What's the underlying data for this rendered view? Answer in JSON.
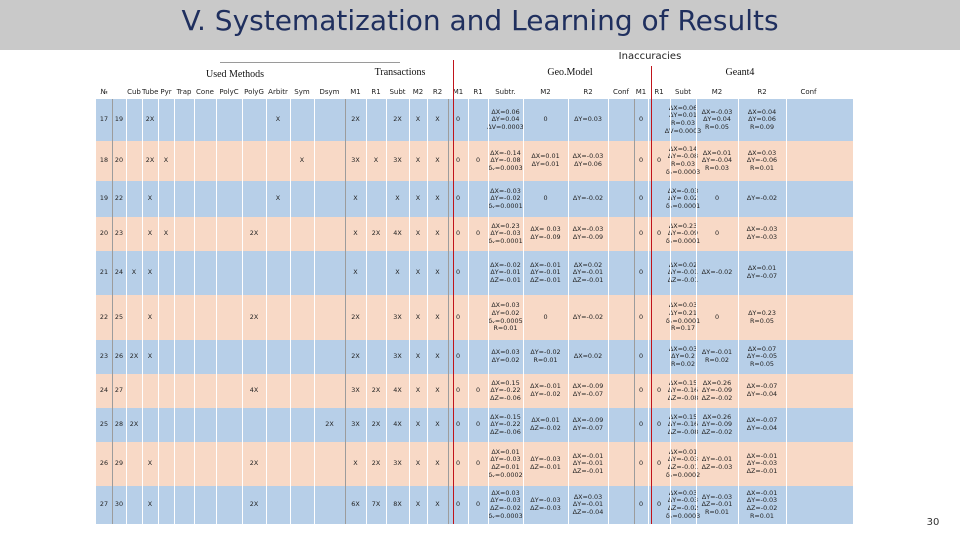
{
  "slide": {
    "title": "V. Systematization and Learning of Results",
    "page_number": "30",
    "inaccuracies_label": "Inaccuracies"
  },
  "groups": {
    "used_methods": "Used Methods",
    "transactions": "Transactions",
    "transactions_sub": "",
    "geomodel": "Geo.Model",
    "geant4": "Geant4"
  },
  "columns": [
    "№",
    "",
    "Cub",
    "Tube",
    "Pyr",
    "Trap",
    "Cone",
    "PolyC",
    "PolyG",
    "Arbitr",
    "Sym",
    "Dsym",
    "M1",
    "R1",
    "Subt",
    "M2",
    "R2",
    "M1",
    "R1",
    "Subtr.",
    "M2",
    "R2",
    "Conf",
    "M1",
    "R1",
    "Subt",
    "M2",
    "R2",
    "Conf"
  ],
  "rows": [
    {
      "c": [
        "17",
        "19",
        "",
        "2X",
        "",
        "",
        "",
        "",
        "",
        "X",
        "",
        "",
        "2X",
        "",
        "2X",
        "X",
        "X",
        "0",
        "",
        "ΔX=0.06\nΔY=0.04\nΔV=0.0003",
        "0",
        "ΔY=0.03",
        "",
        "0",
        "",
        "ΔX=0.06\nΔY=0.01\nR=0.03\nΔV=0.0003",
        "ΔX=-0.03\nΔY=0.04\nR=0.05",
        "ΔX=0.04\nΔY=0.06\nR=0.09",
        ""
      ]
    },
    {
      "c": [
        "18",
        "20",
        "",
        "2X",
        "X",
        "",
        "",
        "",
        "",
        "",
        "X",
        "",
        "3X",
        "X",
        "3X",
        "X",
        "X",
        "0",
        "0",
        "ΔX=-0.14\nΔY=-0.08\nδᵥ=0.0003",
        "ΔX=0.01\nΔY=0.01",
        "ΔX=-0.03\nΔY=0.06",
        "",
        "0",
        "0",
        "ΔX=0.14\nΔY=-0.08\nR=0.03\nδᵥ=0.0003",
        "ΔX=0.01\nΔY=-0.04\nR=0.03",
        "ΔX=0.03\nΔY=-0.06\nR=0.01",
        ""
      ]
    },
    {
      "c": [
        "19",
        "22",
        "",
        "X",
        "",
        "",
        "",
        "",
        "",
        "X",
        "",
        "",
        "X",
        "",
        "X",
        "X",
        "X",
        "0",
        "",
        "ΔX=-0.03\nΔY=-0.02\nδᵥ=0.0001",
        "0",
        "ΔY=-0.02",
        "",
        "0",
        "",
        "ΔX=-0.03\nΔY= 0.02\nδᵥ=0.0001",
        "0",
        "ΔY=-0.02",
        ""
      ]
    },
    {
      "c": [
        "20",
        "23",
        "",
        "X",
        "X",
        "",
        "",
        "",
        "2X",
        "",
        "",
        "",
        "X",
        "2X",
        "4X",
        "X",
        "X",
        "0",
        "0",
        "ΔX=0.23\nΔY=-0.03\nδᵥ=0.0001",
        "ΔX= 0.03\nΔY=-0.09",
        "ΔX=-0.03\nΔY=-0.09",
        "",
        "0",
        "0",
        "ΔX=0.23\nΔY=-0.09\nδᵥ=0.0001",
        "0",
        "ΔX=-0.03\nΔY=-0.03",
        ""
      ]
    },
    {
      "c": [
        "21",
        "24",
        "X",
        "X",
        "",
        "",
        "",
        "",
        "",
        "",
        "",
        "",
        "X",
        "",
        "X",
        "X",
        "X",
        "0",
        "",
        "ΔX=-0.02\nΔY=-0.01\nΔZ=-0.01",
        "ΔX=-0.01\nΔY=-0.01\nΔZ=-0.01",
        "ΔX=0.02\nΔY=-0.01\nΔZ=-0.01",
        "",
        "0",
        "",
        "ΔX=0.02\nΔY=-0.01\nΔZ=-0.01",
        "ΔX=-0.02",
        "ΔX=0.01\nΔY=-0.07",
        ""
      ]
    },
    {
      "c": [
        "22",
        "25",
        "",
        "X",
        "",
        "",
        "",
        "",
        "2X",
        "",
        "",
        "",
        "2X",
        "",
        "3X",
        "X",
        "X",
        "0",
        "",
        "ΔX=0.03\nΔY=0.02\nδᵥ=0.0005\nR=0.01",
        "0",
        "ΔY=-0.02",
        "",
        "0",
        "",
        "ΔX=0.03\nΔY=0.21\nδᵥ=0.0001\nR=0.17",
        "0",
        "ΔY=0.23\nR=0.05",
        ""
      ]
    },
    {
      "c": [
        "23",
        "26",
        "2X",
        "X",
        "",
        "",
        "",
        "",
        "",
        "",
        "",
        "",
        "2X",
        "",
        "3X",
        "X",
        "X",
        "0",
        "",
        "ΔX=0.03\nΔY=0.02",
        "ΔY=-0.02\nR=0.01",
        "ΔX=0.02",
        "",
        "0",
        "",
        "ΔX=0.03\nΔY=0.2\nR=0.02",
        "ΔY=-0.01\nR=0.02",
        "ΔX=0.07\nΔY=-0.05\nR=0.05",
        ""
      ]
    },
    {
      "c": [
        "24",
        "27",
        "",
        "",
        "",
        "",
        "",
        "",
        "4X",
        "",
        "",
        "",
        "3X",
        "2X",
        "4X",
        "X",
        "X",
        "0",
        "0",
        "ΔX=0.15\nΔY=-0.22\nΔZ=-0.06",
        "ΔX=-0.01\nΔY=-0.02",
        "ΔX=-0.09\nΔY=-0.07",
        "",
        "0",
        "0",
        "ΔX=0.15\nΔY=-0.16\nΔZ=-0.08",
        "ΔX=0.26\nΔY=-0.09\nΔZ=-0.02",
        "ΔX=-0.07\nΔY=-0.04",
        ""
      ]
    },
    {
      "c": [
        "25",
        "28",
        "2X",
        "",
        "",
        "",
        "",
        "",
        "",
        "",
        "",
        "2X",
        "3X",
        "2X",
        "4X",
        "X",
        "X",
        "0",
        "0",
        "ΔX=-0.15\nΔY=-0.22\nΔZ=-0.06",
        "ΔX=0.01\nΔZ=-0.02",
        "ΔX=-0.09\nΔY=-0.07",
        "",
        "0",
        "0",
        "ΔX=0.15\nΔY=-0.16\nΔZ=-0.08",
        "ΔX=0.26\nΔY=-0.09\nΔZ=-0.02",
        "ΔX=-0.07\nΔY=-0.04",
        ""
      ]
    },
    {
      "c": [
        "26",
        "29",
        "",
        "X",
        "",
        "",
        "",
        "",
        "2X",
        "",
        "",
        "",
        "X",
        "2X",
        "3X",
        "X",
        "X",
        "0",
        "0",
        "ΔX=0.01\nΔY=-0.03\nΔZ=0.01\nδᵥ=0.0002",
        "ΔY=-0.03\nΔZ=-0.01",
        "ΔX=-0.01\nΔY=-0.01\nΔZ=-0.01",
        "",
        "0",
        "0",
        "ΔX=0.01\nΔY=-0.03\nΔZ=-0.01\nδᵥ=0.0002",
        "ΔY=-0.01\nΔZ=-0.03",
        "ΔX=-0.01\nΔY=-0.03\nΔZ=-0.01",
        ""
      ]
    },
    {
      "c": [
        "27",
        "30",
        "",
        "X",
        "",
        "",
        "",
        "",
        "2X",
        "",
        "",
        "",
        "6X",
        "7X",
        "8X",
        "X",
        "X",
        "0",
        "0",
        "ΔX=0.03\nΔY=-0.03\nΔZ=-0.02\nδᵥ=0.0003",
        "ΔY=-0.03\nΔZ=-0.03",
        "ΔX=0.03\nΔY=-0.01\nΔZ=-0.04",
        "",
        "0",
        "0",
        "ΔX=0.03\nΔY=-0.03\nΔZ=-0.02\nδᵥ=0.0003",
        "ΔY=-0.03\nΔZ=-0.01\nR=0.01",
        "ΔX=-0.01\nΔY=-0.03\nΔZ=-0.02\nR=0.01",
        ""
      ]
    }
  ],
  "colors": {
    "title": "#1f2f5e",
    "titlebar": "#c9c9c9",
    "row_blue": "#b7cfe8",
    "row_peach": "#f8d9c6",
    "separator_red": "#c0141b"
  }
}
